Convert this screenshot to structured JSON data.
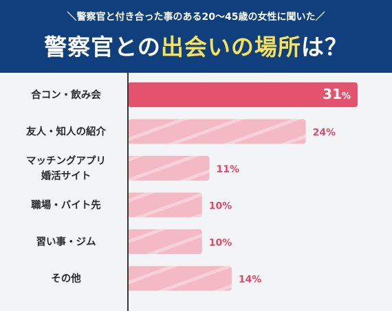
{
  "header": {
    "subtitle": "＼警察官と付き合った事のある20〜45歳の女性に聞いた／",
    "title_part1": "警察官との",
    "title_highlight": "出会いの場所",
    "title_part2": "は？"
  },
  "colors": {
    "header_bg": "#0f3f7c",
    "highlight_text": "#f7e15a",
    "top_bar": "#e4546f",
    "other_bars": "#f3b9c4",
    "value_text": "#e0486a",
    "background": "#f3f4f6"
  },
  "chart_data": {
    "type": "bar",
    "orientation": "horizontal",
    "categories": [
      [
        "合コン・飲み会"
      ],
      [
        "友人・知人の紹介"
      ],
      [
        "マッチングアプリ",
        "婚活サイト"
      ],
      [
        "職場・バイト先"
      ],
      [
        "習い事・ジム"
      ],
      [
        "その他"
      ]
    ],
    "values": [
      31,
      24,
      11,
      10,
      10,
      14
    ],
    "unit": "%",
    "highlighted_index": 0,
    "xlim": [
      0,
      40
    ],
    "grid": false
  }
}
